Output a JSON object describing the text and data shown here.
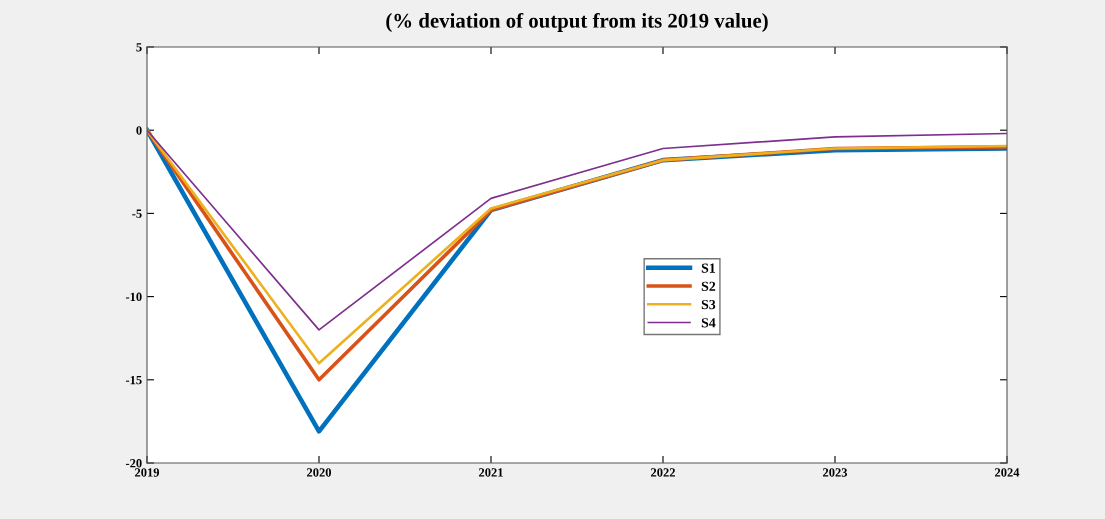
{
  "chart_data": {
    "type": "line",
    "title": "(% deviation of output from its 2019 value)",
    "x": [
      2019,
      2020,
      2021,
      2022,
      2023,
      2024
    ],
    "series": [
      {
        "name": "S1",
        "color": "#0072bd",
        "values": [
          0,
          -18.1,
          -4.8,
          -1.8,
          -1.2,
          -1.1
        ]
      },
      {
        "name": "S2",
        "color": "#d95319",
        "values": [
          0,
          -15.0,
          -4.8,
          -1.8,
          -1.1,
          -1.0
        ]
      },
      {
        "name": "S3",
        "color": "#edb120",
        "values": [
          0,
          -14.0,
          -4.7,
          -1.8,
          -1.1,
          -0.95
        ]
      },
      {
        "name": "S4",
        "color": "#7e2f8e",
        "values": [
          0,
          -12.0,
          -4.1,
          -1.1,
          -0.4,
          -0.2
        ]
      }
    ],
    "xlim": [
      2019,
      2024
    ],
    "xticks": [
      2019,
      2020,
      2021,
      2022,
      2023,
      2024
    ],
    "ylim": [
      -20,
      5
    ],
    "yticks": [
      -20,
      -15,
      -10,
      -5,
      0,
      5
    ],
    "grid": false,
    "legend": "center right"
  }
}
